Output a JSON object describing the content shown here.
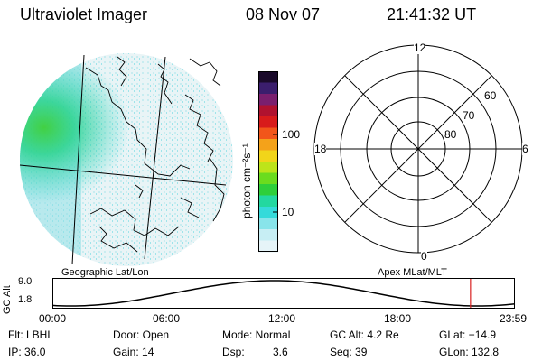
{
  "header": {
    "title": "Ultraviolet Imager",
    "date": "08 Nov 07",
    "time": "21:41:32 UT"
  },
  "colorbar": {
    "label": "photon cm⁻²s⁻¹",
    "ticks": [
      "100",
      "10"
    ],
    "colors": [
      "#1a0a2a",
      "#3b1e6d",
      "#7a1f6e",
      "#b0122f",
      "#d81b1b",
      "#f2561a",
      "#f4a21a",
      "#f1d51a",
      "#bde41a",
      "#6bdc1e",
      "#2ecf3a",
      "#23d8a0",
      "#35dada",
      "#88e4ea",
      "#c7eef4",
      "#e6f4f8"
    ]
  },
  "panels": {
    "geo_label": "Geographic Lat/Lon",
    "apex_label": "Apex MLat/MLT"
  },
  "polar": {
    "mlt_labels": [
      "12",
      "6",
      "0",
      "18"
    ],
    "lat_labels": [
      "60",
      "70",
      "80"
    ]
  },
  "timeline": {
    "ylabel": "GC Alt",
    "yticks": [
      "9.0",
      "1.8"
    ],
    "xticks": [
      "00:00",
      "06:00",
      "12:00",
      "18:00",
      "23:59"
    ],
    "current_fraction": 0.904,
    "marker_color": "#d82020"
  },
  "info": {
    "filter": "Flt: LBHL",
    "door": "Door: Open",
    "mode": "Mode: Normal",
    "gc_alt": "GC Alt: 4.2 Re",
    "glat": "GLat: −14.9",
    "ip": "IP: 36.0",
    "gain": "Gain: 14",
    "dsp_label": "Dsp:",
    "dsp_value": "3.6",
    "seq": "Seq: 39",
    "glon": "GLon: 132.8"
  }
}
